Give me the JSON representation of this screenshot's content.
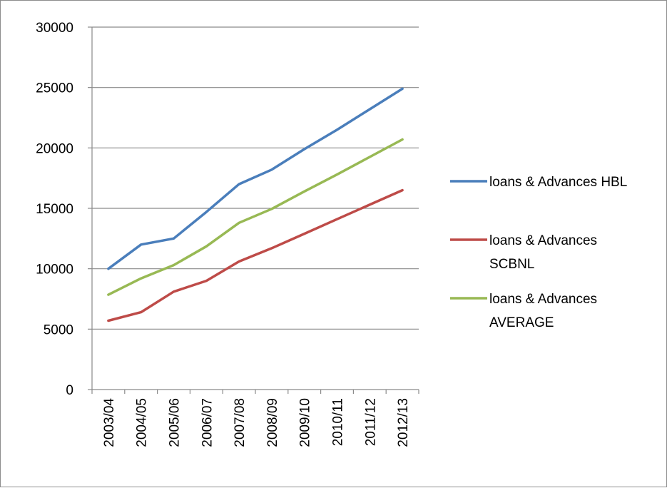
{
  "chart_data": {
    "type": "line",
    "title": "",
    "xlabel": "",
    "ylabel": "",
    "categories": [
      "2003/04",
      "2004/05",
      "2005/06",
      "2006/07",
      "2007/08",
      "2008/09",
      "2009/10",
      "2010/11",
      "2011/12",
      "2012/13"
    ],
    "ylim": [
      0,
      30000
    ],
    "yticks": [
      "0",
      "5000",
      "10000",
      "15000",
      "20000",
      "25000",
      "30000"
    ],
    "grid": "horizontal",
    "legend_position": "right",
    "series": [
      {
        "name_lines": [
          "loans & Advances HBL"
        ],
        "color": "#4a7ebb",
        "values": [
          10000,
          12000,
          12500,
          14700,
          17000,
          18200,
          19900,
          21500,
          23200,
          24900
        ]
      },
      {
        "name_lines": [
          "loans & Advances",
          "SCBNL"
        ],
        "color": "#be4b48",
        "values": [
          5700,
          6400,
          8100,
          9000,
          10600,
          11700,
          12900,
          14100,
          15300,
          16500
        ]
      },
      {
        "name_lines": [
          "loans & Advances",
          "AVERAGE"
        ],
        "color": "#98b954",
        "values": [
          7850,
          9200,
          10300,
          11850,
          13800,
          14950,
          16400,
          17800,
          19250,
          20700
        ]
      }
    ]
  }
}
